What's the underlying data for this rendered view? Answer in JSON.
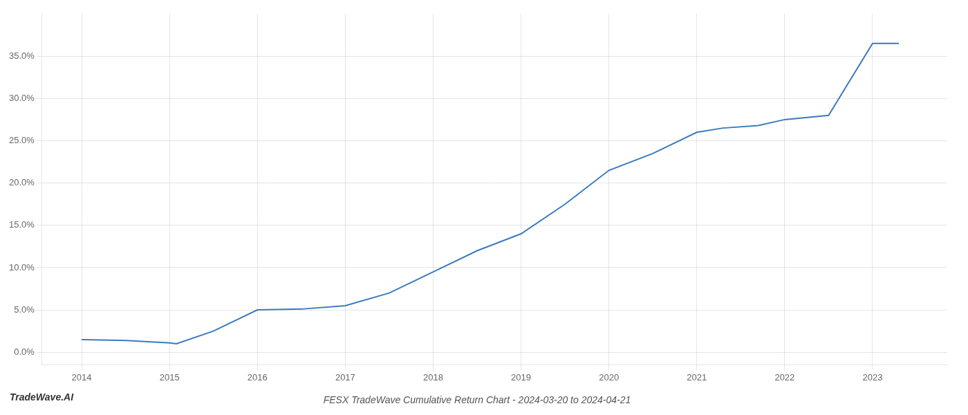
{
  "chart_data": {
    "type": "line",
    "title": "FESX TradeWave Cumulative Return Chart - 2024-03-20 to 2024-04-21",
    "annotations": [
      "TradeWave.AI"
    ],
    "x": [
      2014,
      2014.5,
      2015,
      2015.08,
      2015.5,
      2016,
      2016.5,
      2017,
      2017.5,
      2018,
      2018.5,
      2019,
      2019.5,
      2020,
      2020.5,
      2021,
      2021.3,
      2021.7,
      2022,
      2022.5,
      2023,
      2023.3
    ],
    "values": [
      1.5,
      1.4,
      1.1,
      1.0,
      2.5,
      5.0,
      5.1,
      5.5,
      7.0,
      9.5,
      12.0,
      14.0,
      17.5,
      21.5,
      23.5,
      26.0,
      26.5,
      26.8,
      27.5,
      28.0,
      36.5,
      36.5
    ],
    "color": "#3a7abf",
    "xlim": [
      2013.55,
      2023.85
    ],
    "ylim": [
      -1.5,
      40.0
    ],
    "xticks": [
      2014,
      2015,
      2016,
      2017,
      2018,
      2019,
      2020,
      2021,
      2022,
      2023
    ],
    "yticks": [
      {
        "value": 0.0,
        "label": "0.0%"
      },
      {
        "value": 5.0,
        "label": "5.0%"
      },
      {
        "value": 10.0,
        "label": "10.0%"
      },
      {
        "value": 15.0,
        "label": "15.0%"
      },
      {
        "value": 20.0,
        "label": "20.0%"
      },
      {
        "value": 25.0,
        "label": "25.0%"
      },
      {
        "value": 30.0,
        "label": "30.0%"
      },
      {
        "value": 35.0,
        "label": "35.0%"
      }
    ],
    "grid": true
  }
}
